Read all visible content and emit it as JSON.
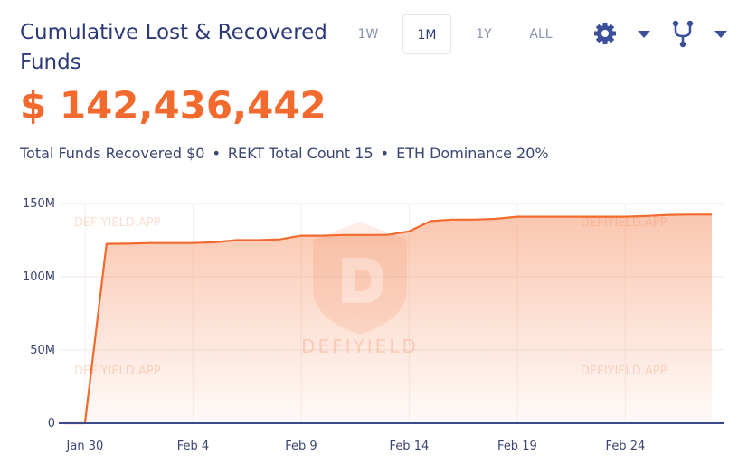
{
  "header": {
    "title": "Cumulative Lost & Recovered Funds",
    "ranges": [
      "1W",
      "1M",
      "1Y",
      "ALL"
    ],
    "selected_range": 1,
    "total": "$ 142,436,442",
    "stats": [
      "Total Funds Recovered $0",
      "REKT Total Count 15",
      "ETH Dominance 20%"
    ]
  },
  "chart_data": {
    "type": "area",
    "color": "#f26a2e",
    "categories": [
      null,
      "Jan 30",
      null,
      null,
      null,
      null,
      "Feb 4",
      null,
      null,
      null,
      null,
      "Feb 9",
      null,
      null,
      null,
      null,
      "Feb 14",
      null,
      null,
      null,
      null,
      "Feb 19",
      null,
      null,
      null,
      null,
      "Feb 24",
      null,
      null,
      null,
      null
    ],
    "values": [
      0,
      0,
      122500000,
      122600000,
      123000000,
      123000000,
      123000000,
      123500000,
      125000000,
      125000000,
      125500000,
      128000000,
      128000000,
      128500000,
      128500000,
      128600000,
      131000000,
      138000000,
      139000000,
      139000000,
      139500000,
      141000000,
      141000000,
      141000000,
      141000000,
      141000000,
      141000000,
      141500000,
      142200000,
      142400000,
      142436442
    ],
    "ylim": [
      0,
      150000000
    ],
    "yticks": [
      0,
      {
        "value": 50000000,
        "label": "50M"
      },
      {
        "value": 100000000,
        "label": "100M"
      },
      {
        "value": 150000000,
        "label": "150M"
      }
    ],
    "grid": true,
    "watermarks": [
      "DEFIYIELD.APP",
      "DEFIYIELD"
    ]
  }
}
